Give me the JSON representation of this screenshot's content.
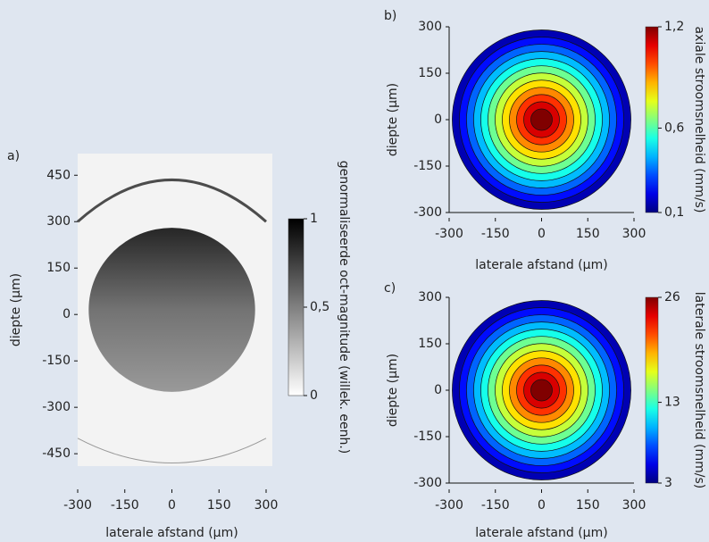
{
  "chart_data": [
    {
      "type": "heatmap",
      "panel_label": "a)",
      "colormap": "gray",
      "xlabel": "laterale afstand (µm)",
      "ylabel": "diepte (µm)",
      "xlim": [
        -300,
        300
      ],
      "ylim": [
        -490,
        520
      ],
      "xticks": [
        -300,
        -150,
        0,
        150,
        300
      ],
      "yticks": [
        450,
        300,
        150,
        0,
        -150,
        -300,
        -450
      ],
      "colorbar": {
        "label": "genormaliseerde oct-magnitude (willek. eenh.)",
        "lim": [
          0,
          1
        ],
        "ticks": [
          1,
          {
            "value": 0.5,
            "label": "0,5"
          },
          0
        ]
      }
    },
    {
      "type": "heatmap",
      "panel_label": "b)",
      "colormap": "jet",
      "xlabel": "laterale afstand (µm)",
      "ylabel": "diepte (µm)",
      "xlim": [
        -300,
        300
      ],
      "ylim": [
        -300,
        300
      ],
      "xticks": [
        -300,
        -150,
        0,
        150,
        300
      ],
      "yticks": [
        300,
        150,
        0,
        -150,
        -300
      ],
      "colorbar": {
        "label": "axiale stroomsnelheid (mm/s)",
        "lim": [
          0.1,
          1.2
        ],
        "ticks": [
          {
            "value": 1.2,
            "label": "1,2"
          },
          {
            "value": 0.6,
            "label": "0,6"
          },
          {
            "value": 0.1,
            "label": "0,1"
          }
        ]
      }
    },
    {
      "type": "heatmap",
      "panel_label": "c)",
      "colormap": "jet",
      "xlabel": "laterale afstand (µm)",
      "ylabel": "diepte (µm)",
      "xlim": [
        -300,
        300
      ],
      "ylim": [
        -300,
        300
      ],
      "xticks": [
        -300,
        -150,
        0,
        150,
        300
      ],
      "yticks": [
        300,
        150,
        0,
        -150,
        -300
      ],
      "colorbar": {
        "label": "laterale stroomsnelheid (mm/s)",
        "lim": [
          3,
          26
        ],
        "ticks": [
          26,
          13,
          3
        ]
      }
    }
  ]
}
